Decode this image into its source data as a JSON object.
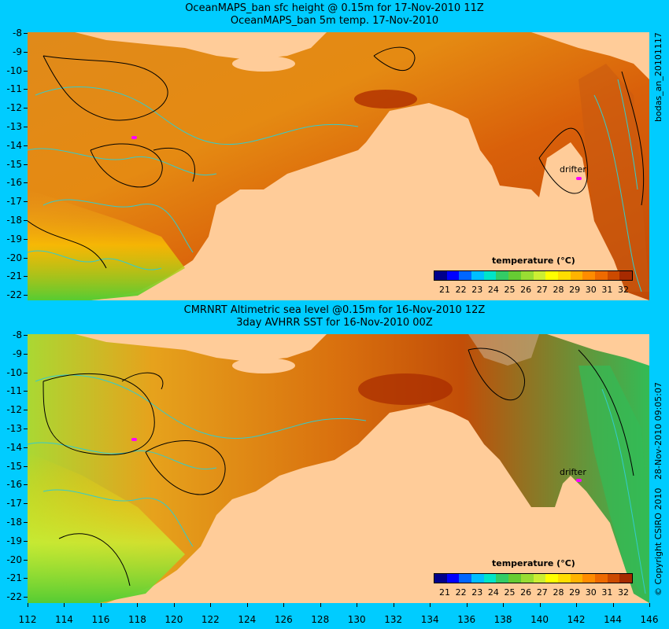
{
  "panel_top": {
    "title_line1": "OceanMAPS_ban sfc height @ 0.15m for 17-Nov-2010 11Z",
    "title_line2": "OceanMAPS_ban 5m temp. 17-Nov-2010",
    "side_label": "bodas_an_20101117",
    "drifter_label": "drifter"
  },
  "panel_bottom": {
    "title_line1": "CMRNRT Altimetric sea level  @0.15m  for 16-Nov-2010 12Z",
    "title_line2": "3day AVHRR SST for 16-Nov-2010 00Z",
    "side_label_date": "28-Nov-2010 09:05:07",
    "side_label_copyright": "© Copyright CSIRO 2010",
    "drifter_label": "drifter"
  },
  "axes": {
    "lat_labels": [
      "-8",
      "-9",
      "-10",
      "-11",
      "-12",
      "-13",
      "-14",
      "-15",
      "-16",
      "-17",
      "-18",
      "-19",
      "-20",
      "-21",
      "-22"
    ],
    "lon_labels": [
      "112",
      "114",
      "116",
      "118",
      "120",
      "122",
      "124",
      "126",
      "128",
      "130",
      "132",
      "134",
      "136",
      "138",
      "140",
      "142",
      "144",
      "146"
    ]
  },
  "legend": {
    "title": "temperature (°C)",
    "labels": [
      "21",
      "22",
      "23",
      "24",
      "25",
      "26",
      "27",
      "28",
      "29",
      "30",
      "31",
      "32"
    ],
    "colors": [
      "#00008b",
      "#0000ff",
      "#0066ff",
      "#00bfff",
      "#00e5c8",
      "#33cc66",
      "#66cc33",
      "#99dd33",
      "#ccee33",
      "#ffff00",
      "#ffdd00",
      "#ffb300",
      "#ff8c00",
      "#ee6a00",
      "#cc4a00",
      "#a62a00"
    ]
  },
  "colors": {
    "background": "#00ccff",
    "land": "#ffcc99",
    "contour_cyan": "#33cccc",
    "contour_black": "#000000",
    "drifter": "#ff00ff"
  }
}
